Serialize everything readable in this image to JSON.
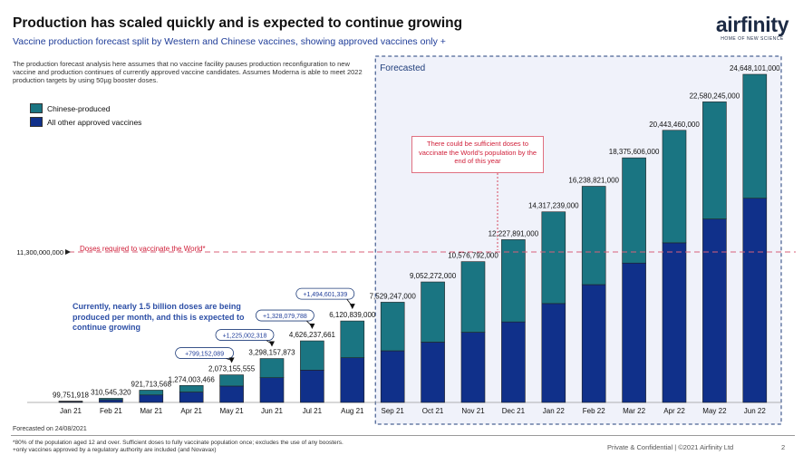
{
  "header": {
    "title": "Production has scaled quickly and is expected to continue growing",
    "subtitle": "Vaccine production forecast split by Western and Chinese vaccines, showing approved vaccines only +",
    "logo_word": "airfinity",
    "logo_tag": "HOME OF NEW SCIENCE"
  },
  "note": "The production forecast analysis here assumes that no vaccine facility pauses production reconfiguration to new vaccine and production continues of currently approved vaccine candidates. Assumes Moderna is able to meet 2022 production targets by using 50µg booster doses.",
  "legend": [
    {
      "label": "Chinese-produced",
      "color": "#1a7582"
    },
    {
      "label": "All other approved vaccines",
      "color": "#10308a"
    }
  ],
  "forecast_label": "Forecasted",
  "threshold": {
    "value_label": "11,300,000,000",
    "label": "Doses required to vaccinate the World*"
  },
  "red_box_text": "There could be sufficient doses to vaccinate the World's population by the end of this year",
  "callout_left": "Currently, nearly 1.5 billion doses are being produced per month, and this is expected to continue growing",
  "footer": {
    "forecast_date": "Forecasted on 24/08/2021",
    "footnote_1": "*80% of the population aged 12 and over. Sufficient doses to fully vaccinate population once; excludes the use of any boosters.",
    "footnote_2": "+only vaccines approved by a regulatory authority are included (and Novavax)",
    "confidential": "Private & Confidential | ©2021 Airfinity Ltd",
    "page": "2"
  },
  "chart_data": {
    "type": "bar",
    "stacked": true,
    "categories": [
      "Jan 21",
      "Feb 21",
      "Mar 21",
      "Apr 21",
      "May 21",
      "Jun 21",
      "Jul 21",
      "Aug 21",
      "Sep 21",
      "Oct 21",
      "Nov 21",
      "Dec 21",
      "Jan 22",
      "Feb 22",
      "Mar 22",
      "Apr 22",
      "May 22",
      "Jun 22"
    ],
    "totals": [
      99751918,
      310545320,
      921713568,
      1274003466,
      2073155555,
      3298157873,
      4626237661,
      6120839000,
      7529247000,
      9052272000,
      10576792000,
      12227891000,
      14317239000,
      16238821000,
      18375606000,
      20443460000,
      22580245000,
      24648101000
    ],
    "total_labels": [
      "99,751,918",
      "310,545,320",
      "921,713,568",
      "1,274,003,466",
      "2,073,155,555",
      "3,298,157,873",
      "4,626,237,661",
      "6,120,839,000",
      "7,529,247,000",
      "9,052,272,000",
      "10,576,792,000",
      "12,227,891,000",
      "14,317,239,000",
      "16,238,821,000",
      "18,375,606,000",
      "20,443,460,000",
      "22,580,245,000",
      "24,648,101,000"
    ],
    "series": [
      {
        "name": "All other approved vaccines",
        "color": "#10308a",
        "values": [
          60000000,
          200000000,
          560000000,
          780000000,
          1230000000,
          1860000000,
          2430000000,
          3360000000,
          3880000000,
          4530000000,
          5270000000,
          6050000000,
          7430000000,
          8850000000,
          10470000000,
          11990000000,
          13780000000,
          15340000000
        ]
      },
      {
        "name": "Chinese-produced",
        "color": "#1a7582",
        "values": [
          39751918,
          110545320,
          361713568,
          494003466,
          843155555,
          1438157873,
          2196237661,
          2760839000,
          3649247000,
          4522272000,
          5306792000,
          6177891000,
          6887239000,
          7388821000,
          7905606000,
          8453460000,
          8800245000,
          9308101000
        ]
      }
    ],
    "increments": [
      {
        "label": "+799,152,089",
        "from": 3,
        "to": 4
      },
      {
        "label": "+1,225,002,318",
        "from": 4,
        "to": 5
      },
      {
        "label": "+1,328,079,788",
        "from": 5,
        "to": 6
      },
      {
        "label": "+1,494,601,339",
        "from": 6,
        "to": 7
      }
    ],
    "threshold": 11300000000,
    "forecast_start_index": 8
  }
}
